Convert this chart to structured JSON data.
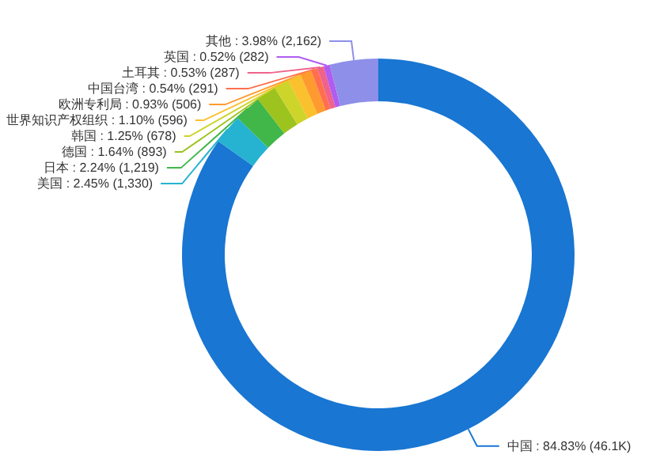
{
  "chart_data": {
    "type": "donut",
    "categories": [
      "中国",
      "美国",
      "日本",
      "德国",
      "韩国",
      "世界知识产权组织",
      "欧洲专利局",
      "中国台湾",
      "土耳其",
      "英国",
      "其他"
    ],
    "values": [
      46100,
      1330,
      1219,
      893,
      678,
      596,
      506,
      291,
      287,
      282,
      2162
    ],
    "value_labels": [
      "84.83% (46.1K)",
      "2.45% (1,330)",
      "2.24% (1,219)",
      "1.64% (893)",
      "1.25% (678)",
      "1.10% (596)",
      "0.93% (506)",
      "0.54% (291)",
      "0.53% (287)",
      "0.52% (282)",
      "3.98% (2,162)"
    ],
    "colors": [
      "#1976d2",
      "#26b3d1",
      "#41b649",
      "#9dc31e",
      "#cdd42a",
      "#fbc02d",
      "#ff9a2e",
      "#ff6f4e",
      "#f0628a",
      "#b15cf0",
      "#8d8fe8"
    ]
  }
}
